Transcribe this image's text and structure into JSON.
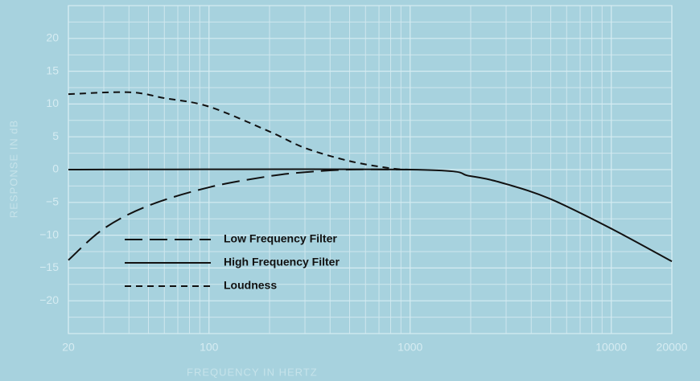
{
  "chart_data": {
    "type": "line",
    "xlabel": "FREQUENCY IN HERTZ",
    "ylabel": "RESPONSE IN dB",
    "xscale": "log",
    "xlim": [
      20,
      20000
    ],
    "ylim": [
      -25,
      25
    ],
    "xticks": [
      20,
      100,
      1000,
      10000,
      20000
    ],
    "xminor": [
      30,
      40,
      50,
      60,
      70,
      80,
      90,
      200,
      300,
      400,
      500,
      600,
      700,
      800,
      900,
      2000,
      3000,
      4000,
      5000,
      6000,
      7000,
      8000,
      9000
    ],
    "yticks": [
      20,
      15,
      10,
      5,
      0,
      {
        "value": -5,
        "label": "−5"
      },
      {
        "value": -10,
        "label": "−10"
      },
      {
        "value": -15,
        "label": "−15"
      },
      {
        "value": -20,
        "label": "−20"
      }
    ],
    "yminor": [
      22.5,
      17.5,
      12.5,
      7.5,
      2.5,
      -2.5,
      -7.5,
      -12.5,
      -17.5,
      -22.5
    ],
    "grid": true,
    "legend": "lower-left",
    "series": [
      {
        "name": "Low Frequency Filter",
        "color": "#111111",
        "dash": "long",
        "x": [
          20,
          30,
          50,
          100,
          200,
          300,
          500,
          1000
        ],
        "values": [
          -13.8,
          -9,
          -5.5,
          -2.7,
          -1,
          -0.4,
          0,
          0
        ]
      },
      {
        "name": "High Frequency Filter",
        "color": "#111111",
        "dash": "solid",
        "x": [
          20,
          1000,
          2000,
          3000,
          5000,
          10000,
          20000
        ],
        "values": [
          0,
          0,
          -1,
          -2.2,
          -4.5,
          -9,
          -14
        ]
      },
      {
        "name": "Loudness",
        "color": "#111111",
        "dash": "short",
        "x": [
          20,
          40,
          60,
          100,
          200,
          300,
          500,
          800,
          1000
        ],
        "values": [
          11.5,
          11.8,
          10.9,
          9.6,
          5.8,
          3.3,
          1.3,
          0.2,
          0
        ]
      }
    ]
  }
}
